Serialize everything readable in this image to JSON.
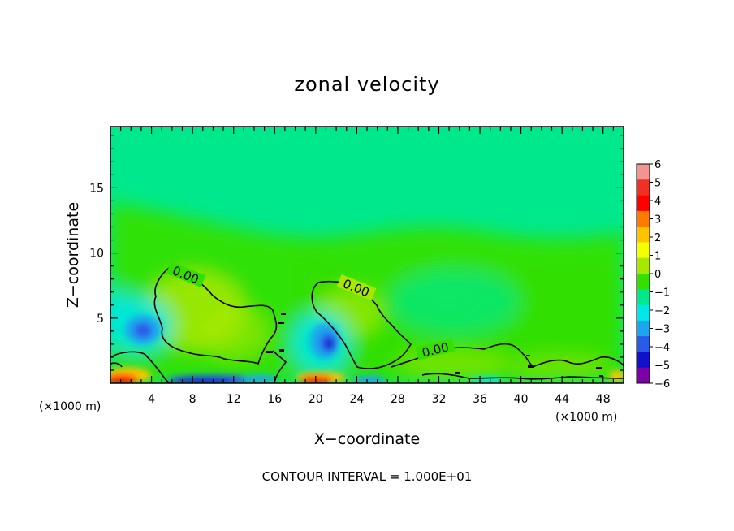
{
  "chart_data": {
    "type": "heatmap",
    "title": "zonal velocity",
    "xlabel": "X−coordinate",
    "ylabel": "Z−coordinate",
    "x_unit": "(×1000 m)",
    "x_unit_right": "(×1000 m)",
    "xlim": [
      0,
      50
    ],
    "ylim": [
      0,
      19.7
    ],
    "x_ticks": [
      4,
      8,
      12,
      16,
      20,
      24,
      28,
      32,
      36,
      40,
      44,
      48
    ],
    "y_ticks": [
      5,
      10,
      15
    ],
    "colorbar": {
      "ticks": [
        6,
        5,
        4,
        3,
        2,
        1,
        0,
        -1,
        -2,
        -3,
        -4,
        -5,
        -6
      ],
      "tick_labels": [
        "6",
        "5",
        "4",
        "3",
        "2",
        "1",
        "0",
        "−1",
        "−2",
        "−3",
        "−4",
        "−5",
        "−6"
      ],
      "colors": [
        "#f2948f",
        "#ee3124",
        "#ff0000",
        "#ff7a00",
        "#ffc400",
        "#f4ff00",
        "#a8e800",
        "#34e000",
        "#00e88c",
        "#00e8e6",
        "#1ba6ee",
        "#2a5ae8",
        "#1111cc",
        "#7b00a8"
      ]
    },
    "contour_labels": [
      "0.00",
      "0.00",
      "0.00"
    ],
    "contour_interval_text": "CONTOUR INTERVAL = 1.000E+01",
    "features": [
      {
        "x": 3.2,
        "z": 4.3,
        "value": -3.2
      },
      {
        "x": 20.5,
        "z": 3.3,
        "value": -3.8
      },
      {
        "x": 8.0,
        "z": 5.5,
        "value": 1.2
      },
      {
        "x": 11.0,
        "z": 3.8,
        "value": 1.0
      },
      {
        "x": 24.0,
        "z": 6.0,
        "value": 1.0
      },
      {
        "x": 1.5,
        "z": 0.3,
        "value": 3.5
      },
      {
        "x": 20.0,
        "z": 0.3,
        "value": 3.5
      },
      {
        "x": 8.0,
        "z": 0.2,
        "value": -4.5
      },
      {
        "x": 48.5,
        "z": 0.5,
        "value": 2.5
      },
      {
        "x": 15.0,
        "z": 15.0,
        "value": -0.7
      },
      {
        "x": 33.0,
        "z": 7.0,
        "value": -1.0
      },
      {
        "x": 48.0,
        "z": 4.0,
        "value": -0.8
      }
    ]
  }
}
